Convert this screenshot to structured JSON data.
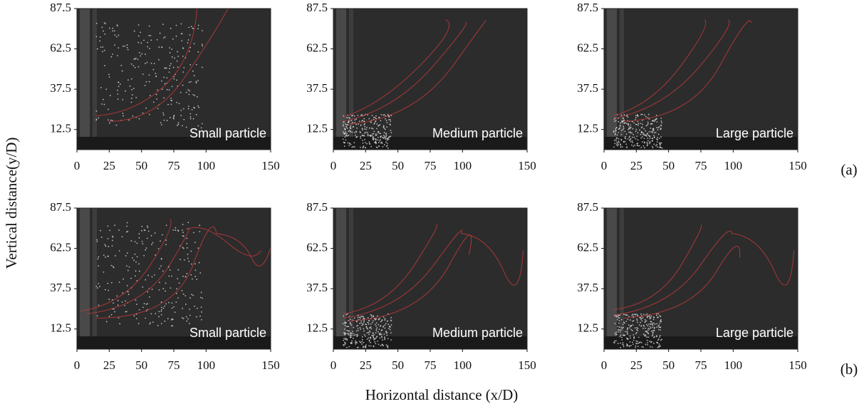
{
  "figure": {
    "ylabel": "Vertical distance(y/D)",
    "xlabel": "Horizontal distance (x/D)",
    "row_labels": [
      "(a)",
      "(b)"
    ]
  },
  "chart_data": [
    {
      "type": "image",
      "annotation": "Small particle",
      "xlim": [
        0,
        150
      ],
      "ylim": [
        0,
        87.5
      ],
      "xticks": [
        0,
        25,
        50,
        75,
        100,
        150
      ],
      "yticks": [
        12.5,
        37.5,
        62.5,
        87.5
      ]
    },
    {
      "type": "image",
      "annotation": "Medium particle",
      "xlim": [
        0,
        150
      ],
      "ylim": [
        0,
        87.5
      ],
      "xticks": [
        0,
        25,
        50,
        75,
        100,
        150
      ],
      "yticks": [
        12.5,
        37.5,
        62.5,
        87.5
      ]
    },
    {
      "type": "image",
      "annotation": "Large particle",
      "xlim": [
        0,
        150
      ],
      "ylim": [
        0,
        87.5
      ],
      "xticks": [
        0,
        25,
        50,
        75,
        100,
        150
      ],
      "yticks": [
        12.5,
        37.5,
        62.5,
        87.5
      ]
    },
    {
      "type": "image",
      "annotation": "Small particle",
      "xlim": [
        0,
        150
      ],
      "ylim": [
        0,
        87.5
      ],
      "xticks": [
        0,
        25,
        50,
        75,
        100,
        150
      ],
      "yticks": [
        12.5,
        37.5,
        62.5,
        87.5
      ]
    },
    {
      "type": "image",
      "annotation": "Medium particle",
      "xlim": [
        0,
        150
      ],
      "ylim": [
        0,
        87.5
      ],
      "xticks": [
        0,
        25,
        50,
        75,
        100,
        150
      ],
      "yticks": [
        12.5,
        37.5,
        62.5,
        87.5
      ]
    },
    {
      "type": "image",
      "annotation": "Large particle",
      "xlim": [
        0,
        150
      ],
      "ylim": [
        0,
        87.5
      ],
      "xticks": [
        0,
        25,
        50,
        75,
        100,
        150
      ],
      "yticks": [
        12.5,
        37.5,
        62.5,
        87.5
      ]
    }
  ]
}
